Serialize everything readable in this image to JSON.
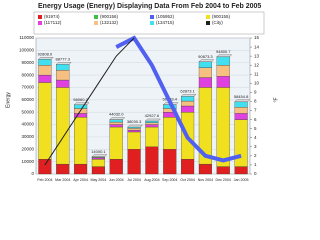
{
  "chart_data": {
    "type": "bar",
    "title": "Energy Usage (Energy) Displaying Data From Feb 2004 to Feb 2005",
    "y_label": "Energy",
    "y2_label": "°F",
    "categories": [
      "Feb 2004",
      "Mar 2004",
      "Apr 2004",
      "May 2004",
      "Jun 2004",
      "Jul 2004",
      "Aug 2004",
      "Sep 2004",
      "Oct 2004",
      "Nov 2004",
      "Dec 2004",
      "Jan 2005"
    ],
    "series": [
      {
        "name": "(91974)",
        "color": "#e02020",
        "values": [
          12000,
          8000,
          8000,
          6000,
          12000,
          20000,
          22000,
          20000,
          12000,
          8000,
          6000,
          6000
        ]
      },
      {
        "name": "(900156)",
        "color": "#40c040",
        "values": [
          null,
          null,
          null,
          null,
          null,
          null,
          null,
          null,
          null,
          null,
          null,
          null
        ]
      },
      {
        "name": "(105952)",
        "color": "#5060f0",
        "axis": "y2",
        "line": true,
        "values": [
          null,
          null,
          null,
          null,
          14,
          15,
          12,
          8,
          4,
          2,
          1.5,
          2
        ]
      },
      {
        "name": "(900155)",
        "color": "#f0e020",
        "values": [
          62000,
          62000,
          38000,
          6000,
          26000,
          14000,
          16000,
          26000,
          38000,
          62000,
          64000,
          38000
        ]
      },
      {
        "name": "(117112)",
        "color": "#e040e0",
        "values": [
          6000,
          6000,
          3000,
          1000,
          2000,
          1500,
          2000,
          4000,
          5000,
          8000,
          9000,
          5000
        ]
      },
      {
        "name": "(132132)",
        "color": "#f8c080",
        "values": [
          8000,
          8000,
          4000,
          500,
          2000,
          1500,
          1500,
          3000,
          4000,
          8000,
          9000,
          5000
        ]
      },
      {
        "name": "(134715)",
        "color": "#40e0f0",
        "values": [
          4800,
          4700,
          3000,
          500,
          2000,
          1000,
          1400,
          3100,
          3800,
          4800,
          6800,
          4400
        ]
      },
      {
        "name": "(City)",
        "color": "#202020",
        "axis": "y2",
        "line": true,
        "values": [
          1,
          4,
          7,
          10,
          13,
          15,
          null,
          null,
          null,
          null,
          null,
          null
        ]
      }
    ],
    "total_labels": [
      "92808.0",
      "88777.3",
      "56060.2",
      "14000.1",
      "44032.0",
      "38030.3",
      "42927.6",
      "56183.4",
      "62873.1",
      "90873.3",
      "94800.7",
      "58454.8"
    ],
    "ylim": [
      0,
      110000
    ],
    "yticks": [
      0,
      10000,
      20000,
      30000,
      40000,
      50000,
      60000,
      70000,
      80000,
      90000,
      100000,
      110000
    ],
    "y2lim": [
      0,
      15
    ],
    "y2ticks": [
      0,
      1,
      2,
      3,
      4,
      5,
      6,
      7,
      8,
      9,
      10,
      11,
      12,
      13,
      14,
      15
    ],
    "grid": true
  }
}
